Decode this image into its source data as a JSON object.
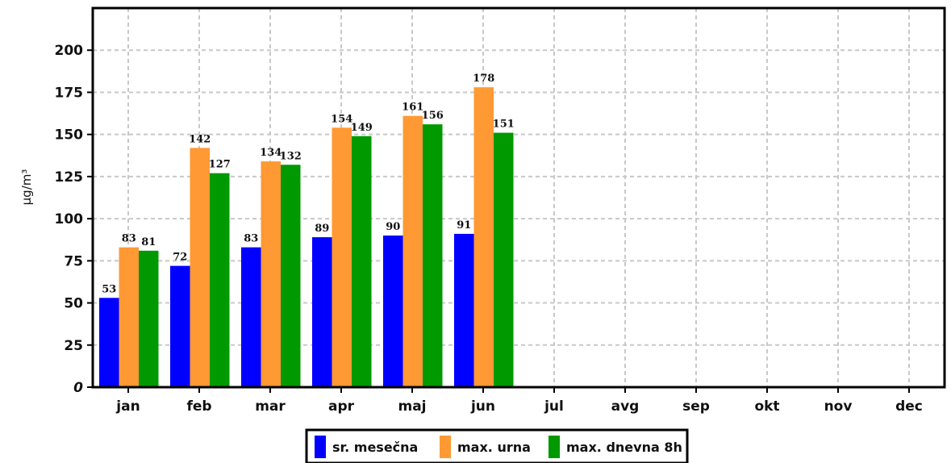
{
  "chart_data": {
    "type": "bar",
    "categories": [
      "jan",
      "feb",
      "mar",
      "apr",
      "maj",
      "jun",
      "jul",
      "avg",
      "sep",
      "okt",
      "nov",
      "dec"
    ],
    "series": [
      {
        "name": "sr. mesečna",
        "color": "#0000ff",
        "values": [
          53,
          72,
          83,
          89,
          90,
          91,
          null,
          null,
          null,
          null,
          null,
          null
        ]
      },
      {
        "name": "max. urna",
        "color": "#ff9933",
        "values": [
          83,
          142,
          134,
          154,
          161,
          178,
          null,
          null,
          null,
          null,
          null,
          null
        ]
      },
      {
        "name": "max. dnevna 8h",
        "color": "#009900",
        "values": [
          81,
          127,
          132,
          149,
          156,
          151,
          null,
          null,
          null,
          null,
          null,
          null
        ]
      }
    ],
    "title": "",
    "xlabel": "",
    "ylabel": "µg/m³",
    "ylim": [
      0,
      225
    ],
    "yticks": [
      0,
      25,
      50,
      75,
      100,
      125,
      150,
      175,
      200
    ],
    "grid": true,
    "legend_position": "bottom-center"
  }
}
